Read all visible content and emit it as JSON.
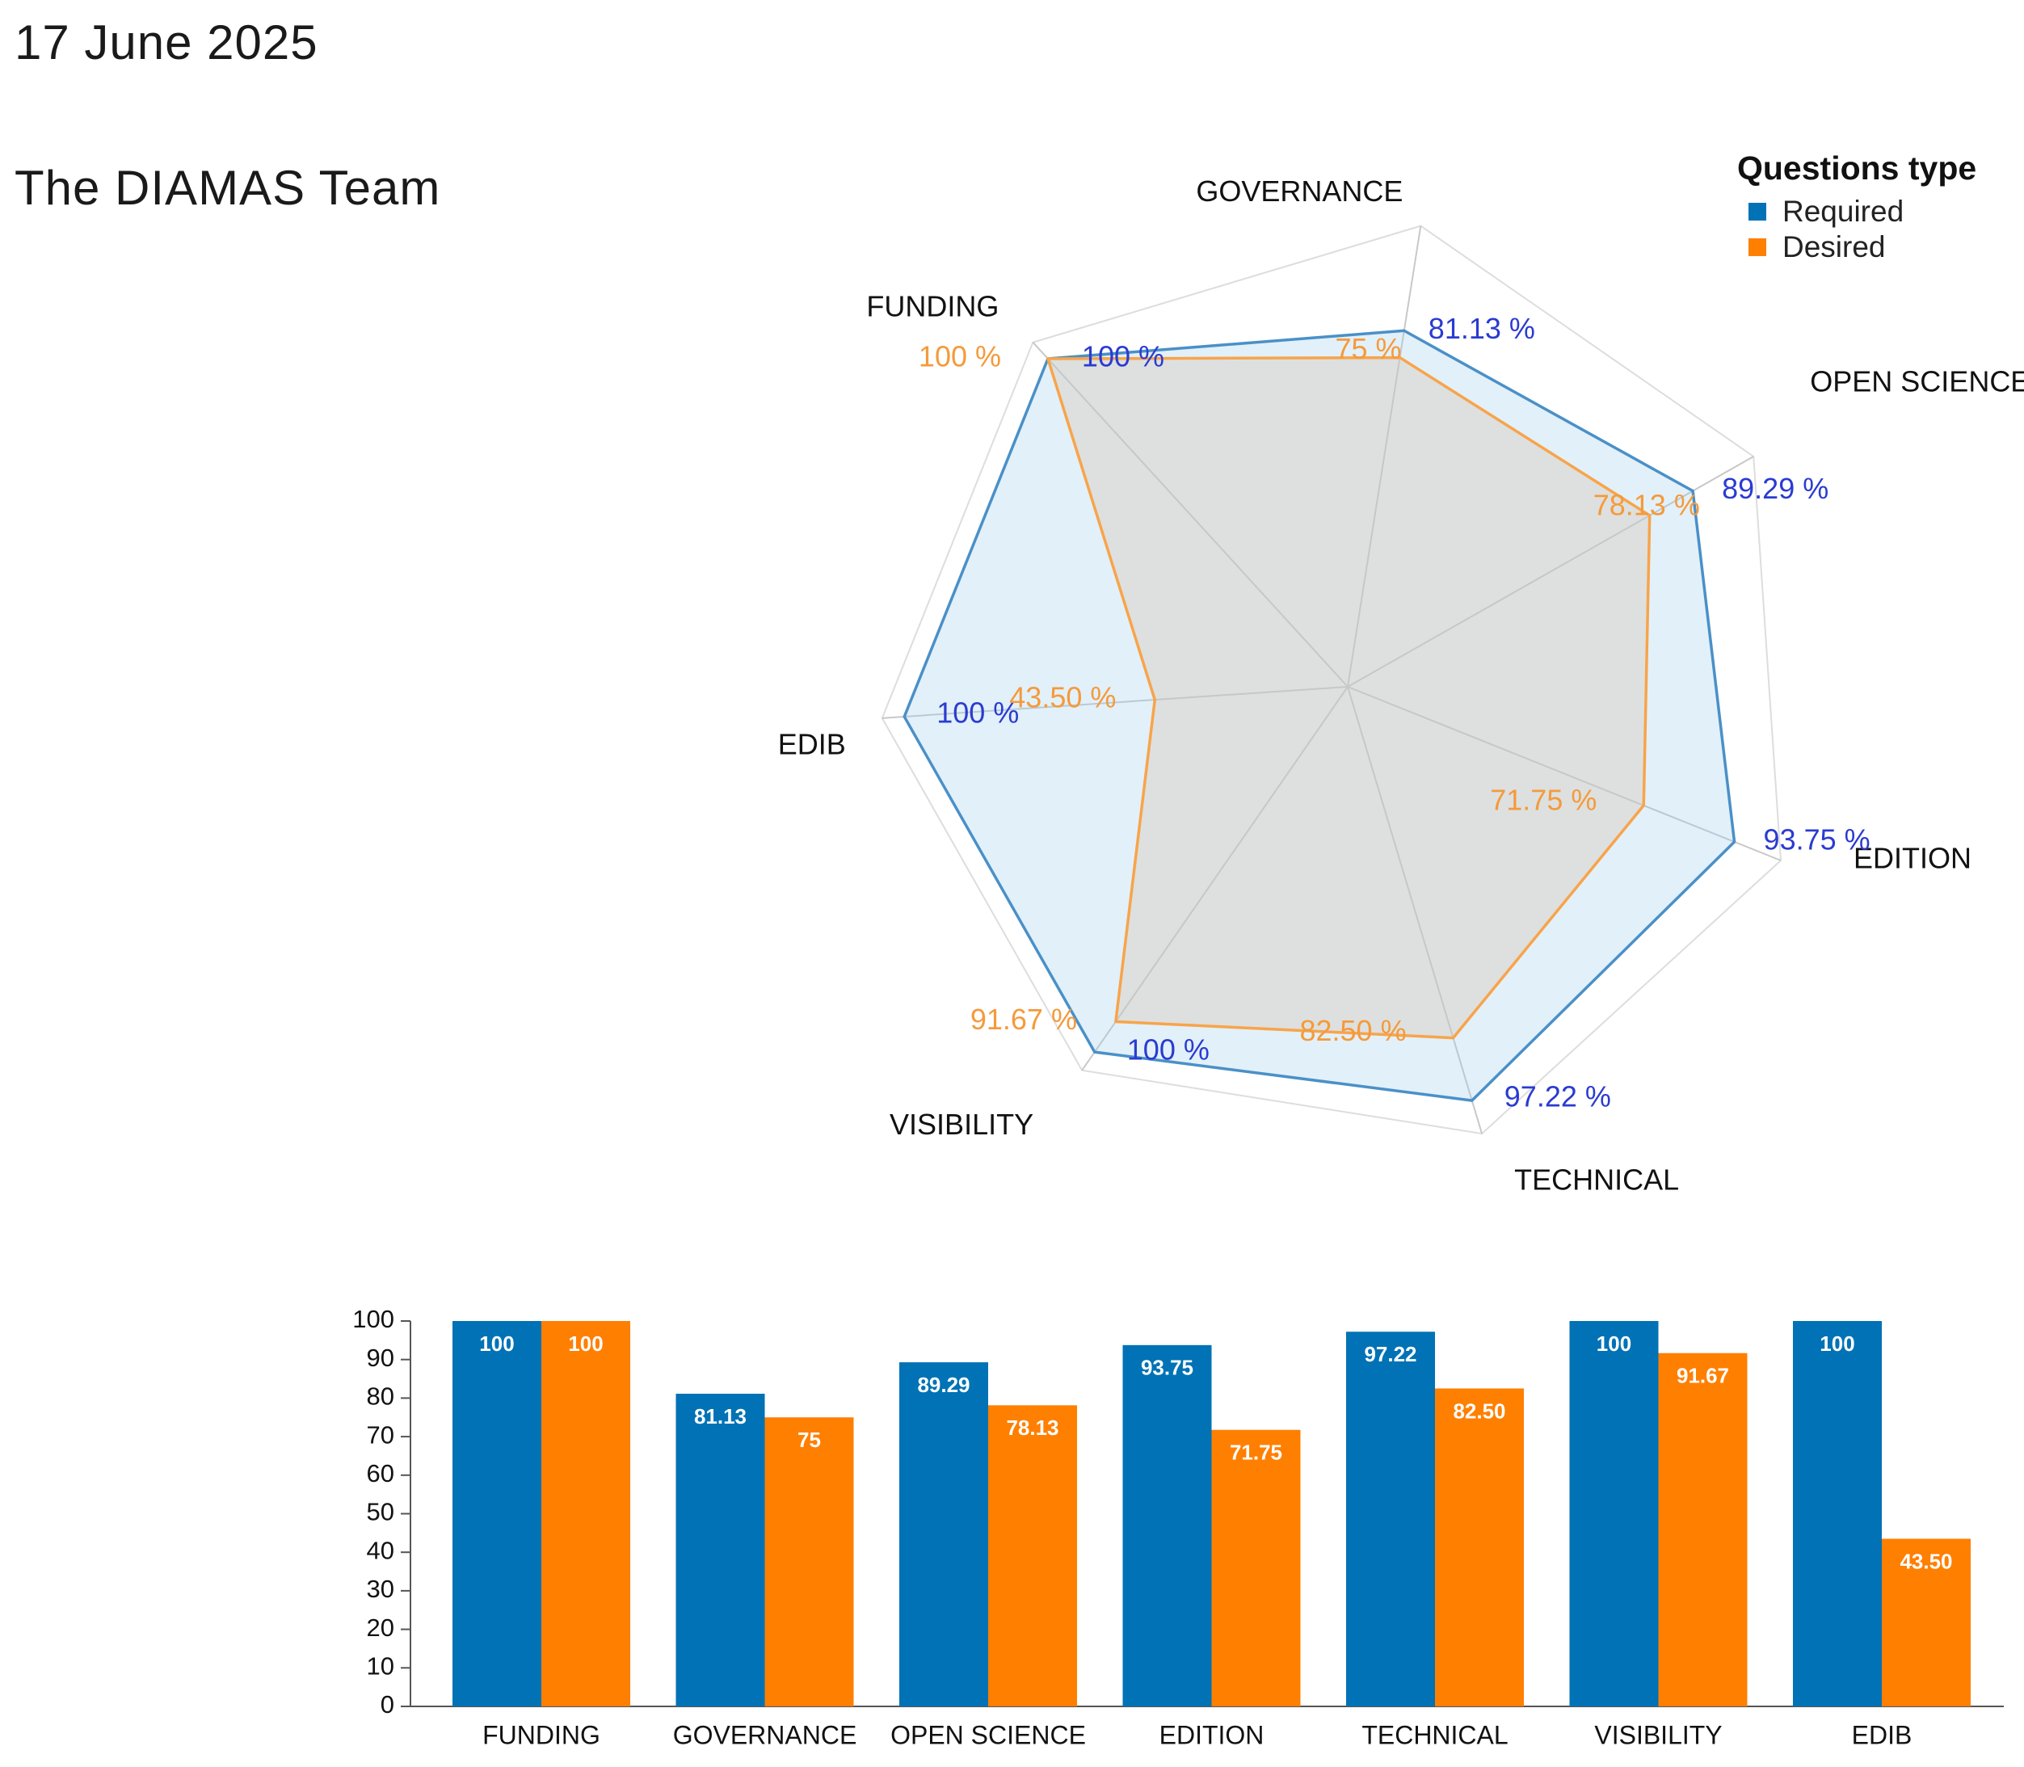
{
  "header": {
    "date": "17 June 2025",
    "team": "The DIAMAS Team"
  },
  "legend": {
    "title": "Questions type",
    "items": [
      {
        "label": "Required",
        "color": "#0072b5"
      },
      {
        "label": "Desired",
        "color": "#ff7f00"
      }
    ]
  },
  "colors": {
    "required": "#0072b5",
    "desired": "#ff7f00",
    "radar_required_line": "#4a90c8",
    "radar_desired_line": "#f8a44a",
    "required_value_text": "#2b3bd1",
    "desired_value_text": "#f59a3b"
  },
  "chart_data": [
    {
      "type": "radar",
      "axes": [
        "GOVERNANCE",
        "OPEN SCIENCE",
        "EDITION",
        "TECHNICAL",
        "VISIBILITY",
        "EDIB",
        "FUNDING"
      ],
      "series": [
        {
          "name": "Required",
          "values": [
            81.13,
            89.29,
            93.75,
            97.22,
            100,
            100,
            100
          ],
          "labels": [
            "81.13 %",
            "89.29 %",
            "93.75 %",
            "97.22 %",
            "100 %",
            "100 %",
            "100 %"
          ]
        },
        {
          "name": "Desired",
          "values": [
            75,
            78.13,
            71.75,
            82.5,
            91.67,
            43.5,
            100
          ],
          "labels": [
            "75 %",
            "78.13 %",
            "71.75 %",
            "82.50 %",
            "91.67 %",
            "43.50 %",
            "100 %"
          ]
        }
      ],
      "range": [
        0,
        100
      ]
    },
    {
      "type": "bar",
      "categories": [
        "FUNDING",
        "GOVERNANCE",
        "OPEN SCIENCE",
        "EDITION",
        "TECHNICAL",
        "VISIBILITY",
        "EDIB"
      ],
      "series": [
        {
          "name": "Required",
          "values": [
            100,
            81.13,
            89.29,
            93.75,
            97.22,
            100,
            100
          ],
          "labels": [
            "100",
            "81.13",
            "89.29",
            "93.75",
            "97.22",
            "100",
            "100"
          ]
        },
        {
          "name": "Desired",
          "values": [
            100,
            75,
            78.13,
            71.75,
            82.5,
            91.67,
            43.5
          ],
          "labels": [
            "100",
            "75",
            "78.13",
            "71.75",
            "82.50",
            "91.67",
            "43.50"
          ]
        }
      ],
      "ylim": [
        0,
        100
      ],
      "yticks": [
        0,
        10,
        20,
        30,
        40,
        50,
        60,
        70,
        80,
        90,
        100
      ]
    }
  ]
}
